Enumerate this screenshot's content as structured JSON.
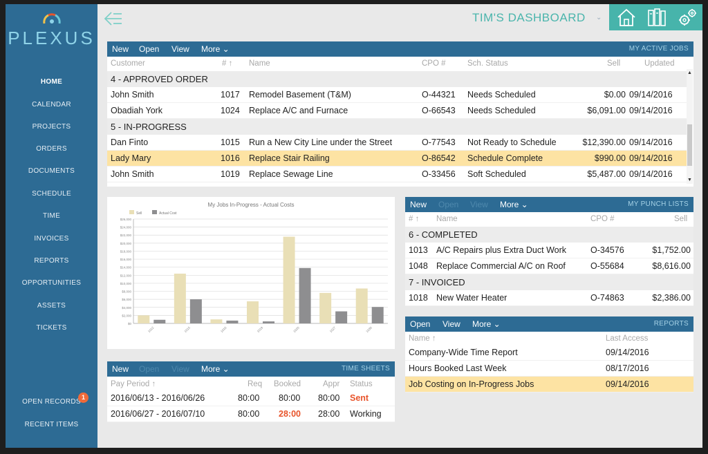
{
  "app": {
    "logo": "PLEXUS",
    "dashboard_title": "TIM'S DASHBOARD"
  },
  "icons": {
    "back": "back-arrow-icon",
    "home": "home-icon",
    "books": "books-icon",
    "settings": "gears-icon"
  },
  "colors": {
    "sidebar": "#2d6b94",
    "accent": "#47b4ab",
    "highlight": "#fde3a3",
    "alert": "#e8542b",
    "bar_sell": "#e9dfb6",
    "bar_cost": "#8e8e90"
  },
  "sidebar": {
    "items": [
      "HOME",
      "CALENDAR",
      "PROJECTS",
      "ORDERS",
      "DOCUMENTS",
      "SCHEDULE",
      "TIME",
      "INVOICES",
      "REPORTS",
      "OPPORTUNITIES",
      "ASSETS",
      "TICKETS"
    ],
    "bottom": [
      "OPEN RECORDS",
      "RECENT ITEMS"
    ],
    "open_records_count": "1"
  },
  "jobs": {
    "toolbar": [
      "New",
      "Open",
      "View",
      "More ⌄"
    ],
    "title": "MY ACTIVE JOBS",
    "headers": [
      "Customer",
      "# ↑",
      "Name",
      "CPO #",
      "Sch. Status",
      "Sell",
      "Updated"
    ],
    "groups": [
      {
        "label": "4 - APPROVED ORDER",
        "rows": [
          [
            "John Smith",
            "1017",
            "Remodel Basement (T&M)",
            "O-44321",
            "Needs Scheduled",
            "$0.00",
            "09/14/2016"
          ],
          [
            "Obadiah York",
            "1024",
            "Replace A/C and Furnace",
            "O-66543",
            "Needs Scheduled",
            "$6,091.00",
            "09/14/2016"
          ]
        ]
      },
      {
        "label": "5 - IN-PROGRESS",
        "rows": [
          [
            "Dan Finto",
            "1015",
            "Run a New City Line under the Street",
            "O-77543",
            "Not Ready to Schedule",
            "$12,390.00",
            "09/14/2016"
          ],
          [
            "Lady Mary",
            "1016",
            "Replace Stair Railing",
            "O-86542",
            "Schedule Complete",
            "$990.00",
            "09/14/2016"
          ],
          [
            "John Smith",
            "1019",
            "Replace Sewage Line",
            "O-33456",
            "Soft Scheduled",
            "$5,487.00",
            "09/14/2016"
          ]
        ]
      }
    ]
  },
  "chart_data": {
    "type": "bar",
    "title": "My Jobs In-Progress - Actual Costs",
    "legend": [
      "Sell",
      "Actual Cost"
    ],
    "legend_position": "top-left",
    "ylim": [
      0,
      26000
    ],
    "yticks": [
      "$26,000",
      "$24,000",
      "$22,000",
      "$20,000",
      "$18,000",
      "$16,000",
      "$14,000",
      "$12,000",
      "$10,000",
      "$8,000",
      "$6,000",
      "$4,000",
      "$2,000",
      "$0"
    ],
    "categories": [
      "1012",
      "1015",
      "1016",
      "1019",
      "1020",
      "1027",
      "1030"
    ],
    "series": [
      {
        "name": "Sell",
        "values": [
          2000,
          12400,
          1000,
          5500,
          21600,
          7600,
          8700
        ]
      },
      {
        "name": "Actual Cost",
        "values": [
          900,
          6000,
          700,
          500,
          13800,
          3000,
          4100
        ]
      }
    ],
    "grid": true
  },
  "punch": {
    "toolbar": [
      "New",
      "Open",
      "View",
      "More ⌄"
    ],
    "title": "MY PUNCH LISTS",
    "headers": [
      "# ↑",
      "Name",
      "CPO #",
      "Sell"
    ],
    "groups": [
      {
        "label": "6 - COMPLETED",
        "rows": [
          [
            "1013",
            "A/C Repairs plus Extra Duct Work",
            "O-34576",
            "$1,752.00"
          ],
          [
            "1048",
            "Replace Commercial A/C on Roof",
            "O-55684",
            "$8,616.00"
          ]
        ]
      },
      {
        "label": "7 - INVOICED",
        "rows": [
          [
            "1018",
            "New Water Heater",
            "O-74863",
            "$2,386.00"
          ]
        ]
      }
    ]
  },
  "reports": {
    "toolbar": [
      "Open",
      "View",
      "More ⌄"
    ],
    "title": "REPORTS",
    "headers": [
      "Name ↑",
      "Last Access"
    ],
    "rows": [
      [
        "Company-Wide Time Report",
        "09/14/2016"
      ],
      [
        "Hours Booked Last Week",
        "08/17/2016"
      ],
      [
        "Job Costing on In-Progress Jobs",
        "09/14/2016"
      ]
    ]
  },
  "timesheets": {
    "toolbar": [
      "New",
      "Open",
      "View",
      "More ⌄"
    ],
    "title": "TIME SHEETS",
    "headers": [
      "Pay Period ↑",
      "Req",
      "Booked",
      "Appr",
      "Status"
    ],
    "rows": [
      [
        "2016/06/13 - 2016/06/26",
        "80:00",
        "80:00",
        "80:00",
        "Sent"
      ],
      [
        "2016/06/27 - 2016/07/10",
        "80:00",
        "28:00",
        "28:00",
        "Working"
      ]
    ]
  }
}
